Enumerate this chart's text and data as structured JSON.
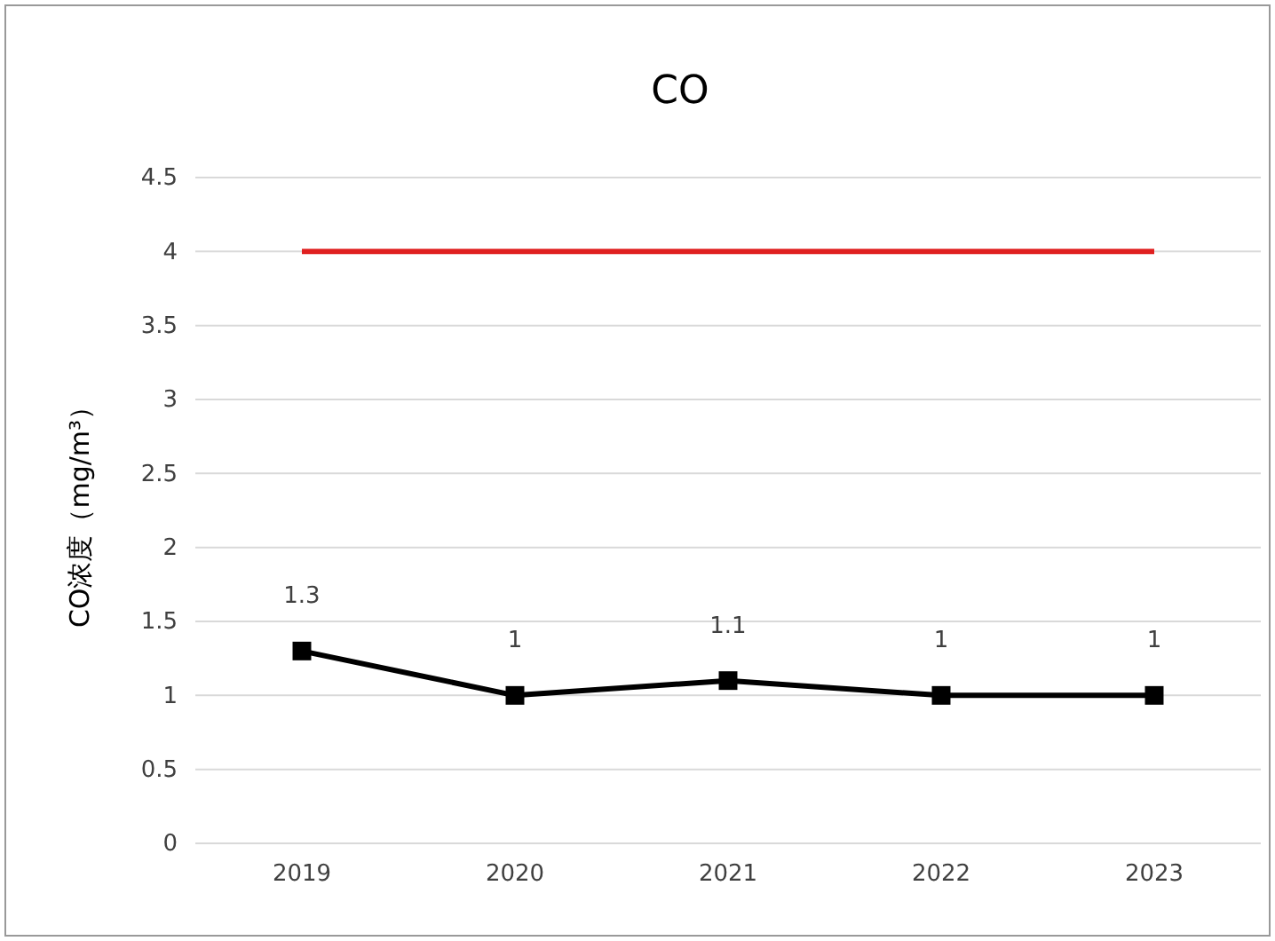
{
  "chart_data": {
    "type": "line",
    "title": "CO",
    "ylabel": "CO浓度（mg/m³）",
    "categories": [
      "2019",
      "2020",
      "2021",
      "2022",
      "2023"
    ],
    "series": [
      {
        "color": "#e02020",
        "values": [
          4,
          4,
          4,
          4,
          4
        ],
        "marker": "none"
      },
      {
        "color": "#000000",
        "values": [
          1.3,
          1,
          1.1,
          1,
          1
        ],
        "marker": "square",
        "value_labels": [
          "1.3",
          "1",
          "1.1",
          "1",
          "1"
        ]
      }
    ],
    "ylim": [
      0,
      4.5
    ],
    "yticks": [
      0,
      0.5,
      1,
      1.5,
      2,
      2.5,
      3,
      3.5,
      4,
      4.5
    ],
    "grid": "y",
    "line_style": "solid"
  }
}
